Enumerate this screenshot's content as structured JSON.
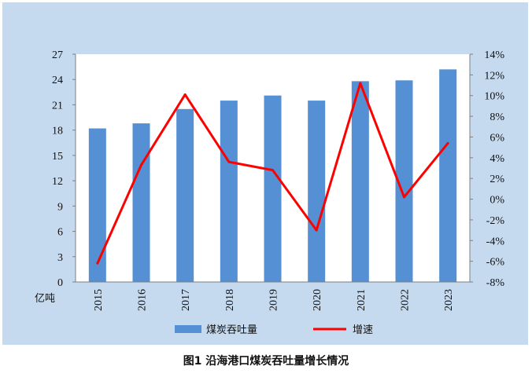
{
  "caption": "图1  沿海港口煤炭吞吐量增长情况",
  "colors": {
    "frame_bg": "#c5d9ef",
    "plot_bg": "#ffffff",
    "bar": "#5590d4",
    "line": "#ff0000"
  },
  "chart_data": {
    "type": "bar+line",
    "title": "图1  沿海港口煤炭吞吐量增长情况",
    "categories": [
      "2015",
      "2016",
      "2017",
      "2018",
      "2019",
      "2020",
      "2021",
      "2022",
      "2023"
    ],
    "y_left_unit": "亿吨",
    "y_left_ticks": [
      "0",
      "3",
      "6",
      "9",
      "12",
      "15",
      "18",
      "21",
      "24",
      "27"
    ],
    "y_left_range": [
      0,
      27
    ],
    "y_right_ticks": [
      "-8%",
      "-6%",
      "-4%",
      "-2%",
      "0%",
      "2%",
      "4%",
      "6%",
      "8%",
      "10%",
      "12%",
      "14%"
    ],
    "y_right_range": [
      -8,
      14
    ],
    "series": [
      {
        "name": "煤炭吞吐量",
        "type": "bar",
        "axis": "left",
        "values": [
          18.2,
          18.8,
          20.5,
          21.5,
          22.1,
          21.5,
          23.8,
          23.9,
          25.2
        ]
      },
      {
        "name": "增速",
        "type": "line",
        "axis": "right",
        "values": [
          -6.2,
          3.3,
          10.1,
          3.6,
          2.8,
          -3.0,
          11.2,
          0.2,
          5.4
        ]
      }
    ],
    "legend": [
      "煤炭吞吐量",
      "增速"
    ],
    "legend_position": "bottom",
    "grid": false
  }
}
